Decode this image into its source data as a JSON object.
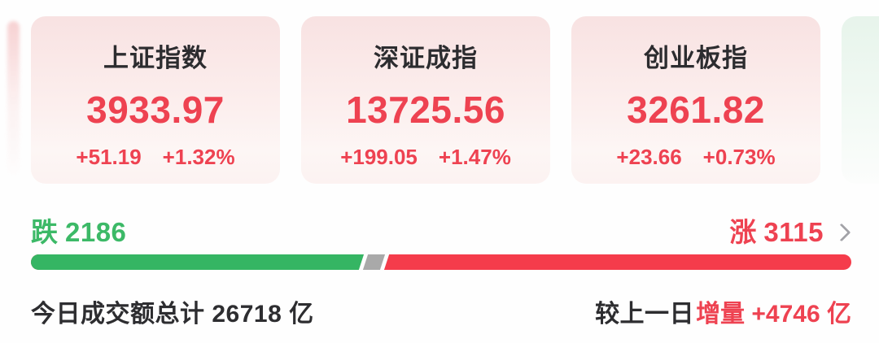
{
  "colors": {
    "accent_red": "#EE4251",
    "accent_green": "#3CB967",
    "bar_red": "#F53C4B",
    "bar_green": "#35B563",
    "bar_gray": "#A9A9A9",
    "card_pink_top": "#F8E2E2",
    "card_green_top": "#E7F4EB",
    "text_dark": "#2D2D30"
  },
  "index_cards": [
    {
      "name": "上证指数",
      "value": "3933.97",
      "change": "+51.19",
      "change_pct": "+1.32%"
    },
    {
      "name": "深证成指",
      "value": "13725.56",
      "change": "+199.05",
      "change_pct": "+1.47%"
    },
    {
      "name": "创业板指",
      "value": "3261.82",
      "change": "+23.66",
      "change_pct": "+0.73%"
    }
  ],
  "market_breadth": {
    "down_label": "跌",
    "down_count": "2186",
    "up_label": "涨",
    "up_count": "3115",
    "chevron_icon": "chevron-right",
    "bar": {
      "down_width_pct": 41.5,
      "divider_left_pct": 40.3
    }
  },
  "turnover": {
    "today_text": "今日成交额总计 26718 亿",
    "compare_prefix": "较上一日",
    "compare_highlight": "增量 +4746 亿"
  }
}
